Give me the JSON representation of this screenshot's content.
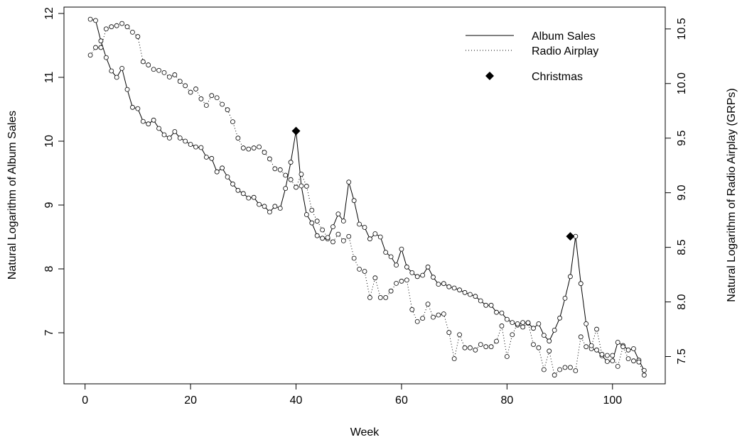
{
  "chart_data": {
    "type": "line",
    "xlabel": "Week",
    "ylabel": "Natural Logarithm of Album Sales",
    "ylabel_right": "Natural Logarithm of Radio Airplay (GRPs)",
    "xlim": [
      -4,
      110
    ],
    "ylim": [
      6.2,
      12.1
    ],
    "ylim_right": [
      7.25,
      10.7
    ],
    "xticks": [
      0,
      20,
      40,
      60,
      80,
      100
    ],
    "yticks": [
      7,
      8,
      9,
      10,
      11,
      12
    ],
    "yticks_right": [
      7.5,
      8.0,
      8.5,
      9.0,
      9.5,
      10.0,
      10.5
    ],
    "yticks_right_labels": [
      "7.5",
      "8.0",
      "8.5",
      "9.0",
      "9.5",
      "10.0",
      "10.5"
    ],
    "grid": false,
    "legend": {
      "position": "top-right",
      "entries": [
        {
          "label": "Album Sales",
          "style": "solid"
        },
        {
          "label": "Radio Airplay",
          "style": "dotted"
        },
        {
          "label": "Christmas",
          "style": "diamond"
        }
      ]
    },
    "series": [
      {
        "name": "Album Sales",
        "axis": "left",
        "style": "solid",
        "x": [
          1,
          2,
          3,
          4,
          5,
          6,
          7,
          8,
          9,
          10,
          11,
          12,
          13,
          14,
          15,
          16,
          17,
          18,
          19,
          20,
          21,
          22,
          23,
          24,
          25,
          26,
          27,
          28,
          29,
          30,
          31,
          32,
          33,
          34,
          35,
          36,
          37,
          38,
          39,
          40,
          41,
          42,
          43,
          44,
          45,
          46,
          47,
          48,
          49,
          50,
          51,
          52,
          53,
          54,
          55,
          56,
          57,
          58,
          59,
          60,
          61,
          62,
          63,
          64,
          65,
          66,
          67,
          68,
          69,
          70,
          71,
          72,
          73,
          74,
          75,
          76,
          77,
          78,
          79,
          80,
          81,
          82,
          83,
          84,
          85,
          86,
          87,
          88,
          89,
          90,
          91,
          92,
          93,
          94,
          95,
          96,
          97,
          98,
          99,
          100,
          101,
          102,
          103,
          104,
          105,
          106
        ],
        "values": [
          11.91,
          11.89,
          11.57,
          11.31,
          11.1,
          11.0,
          11.14,
          10.81,
          10.53,
          10.51,
          10.31,
          10.27,
          10.33,
          10.2,
          10.1,
          10.05,
          10.15,
          10.05,
          10.0,
          9.95,
          9.91,
          9.9,
          9.75,
          9.73,
          9.52,
          9.58,
          9.44,
          9.33,
          9.23,
          9.18,
          9.11,
          9.12,
          9.01,
          8.98,
          8.89,
          8.98,
          8.95,
          9.26,
          9.67,
          10.16,
          9.3,
          8.85,
          8.72,
          8.52,
          8.48,
          8.47,
          8.66,
          8.86,
          8.75,
          9.36,
          9.07,
          8.7,
          8.65,
          8.47,
          8.55,
          8.5,
          8.26,
          8.19,
          8.06,
          8.31,
          8.03,
          7.94,
          7.88,
          7.9,
          8.03,
          7.87,
          7.76,
          7.77,
          7.72,
          7.7,
          7.67,
          7.63,
          7.6,
          7.57,
          7.5,
          7.43,
          7.43,
          7.32,
          7.31,
          7.21,
          7.16,
          7.12,
          7.16,
          7.15,
          7.07,
          7.14,
          6.96,
          6.87,
          7.04,
          7.23,
          7.54,
          7.88,
          8.51,
          7.77,
          7.14,
          6.75,
          6.73,
          6.64,
          6.55,
          6.56,
          6.85,
          6.8,
          6.73,
          6.75,
          6.57,
          6.41
        ]
      },
      {
        "name": "Radio Airplay",
        "axis": "right",
        "style": "dotted",
        "x": [
          1,
          2,
          3,
          4,
          5,
          6,
          7,
          8,
          9,
          10,
          11,
          12,
          13,
          14,
          15,
          16,
          17,
          18,
          19,
          20,
          21,
          22,
          23,
          24,
          25,
          26,
          27,
          28,
          29,
          30,
          31,
          32,
          33,
          34,
          35,
          36,
          37,
          38,
          39,
          40,
          41,
          42,
          43,
          44,
          45,
          46,
          47,
          48,
          49,
          50,
          51,
          52,
          53,
          54,
          55,
          56,
          57,
          58,
          59,
          60,
          61,
          62,
          63,
          64,
          65,
          66,
          67,
          68,
          69,
          70,
          71,
          72,
          73,
          74,
          75,
          76,
          77,
          78,
          79,
          80,
          81,
          82,
          83,
          84,
          85,
          86,
          87,
          88,
          89,
          90,
          91,
          92,
          93,
          94,
          95,
          96,
          97,
          98,
          99,
          100,
          101,
          102,
          103,
          104,
          105,
          106
        ],
        "values": [
          10.26,
          10.33,
          10.33,
          10.5,
          10.52,
          10.53,
          10.55,
          10.52,
          10.47,
          10.43,
          10.2,
          10.17,
          10.13,
          10.12,
          10.1,
          10.06,
          10.08,
          10.02,
          9.98,
          9.92,
          9.95,
          9.86,
          9.8,
          9.89,
          9.87,
          9.81,
          9.76,
          9.65,
          9.5,
          9.41,
          9.4,
          9.41,
          9.42,
          9.37,
          9.31,
          9.22,
          9.21,
          9.16,
          9.12,
          9.05,
          9.17,
          9.06,
          8.84,
          8.74,
          8.66,
          8.59,
          8.55,
          8.62,
          8.56,
          8.6,
          8.4,
          8.3,
          8.28,
          8.04,
          8.22,
          8.04,
          8.04,
          8.1,
          8.17,
          8.19,
          8.2,
          7.93,
          7.82,
          7.85,
          7.98,
          7.86,
          7.88,
          7.89,
          7.72,
          7.48,
          7.7,
          7.58,
          7.58,
          7.56,
          7.61,
          7.59,
          7.59,
          7.64,
          7.78,
          7.5,
          7.7,
          7.8,
          7.77,
          7.81,
          7.61,
          7.58,
          7.38,
          7.55,
          7.33,
          7.38,
          7.4,
          7.4,
          7.37,
          7.68,
          7.59,
          7.6,
          7.75,
          7.52,
          7.51,
          7.51,
          7.41,
          7.59,
          7.48,
          7.46,
          7.45,
          7.33
        ]
      },
      {
        "name": "Christmas",
        "axis": "left",
        "style": "diamond",
        "x": [
          40,
          92
        ],
        "values": [
          10.16,
          8.51
        ]
      }
    ]
  }
}
